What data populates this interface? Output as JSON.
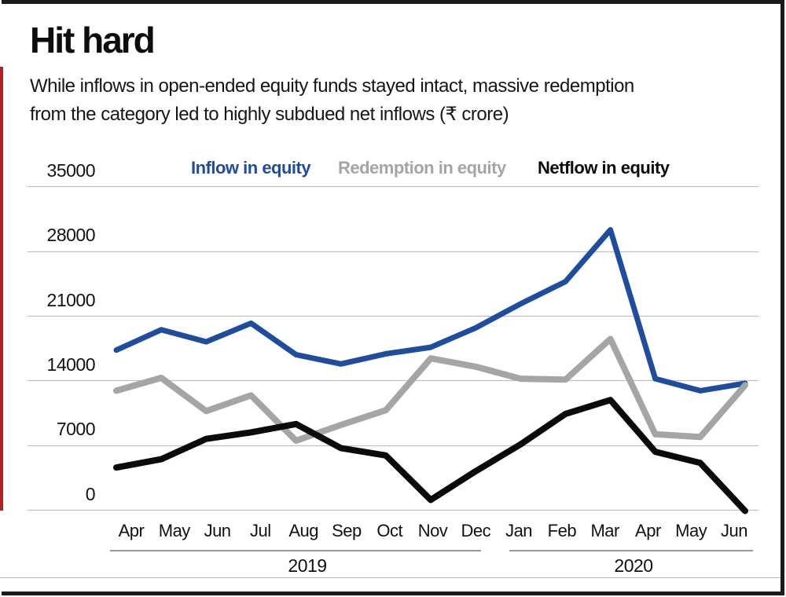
{
  "header": {
    "title": "Hit hard",
    "subtitle_line1": "While inflows in open-ended equity funds stayed intact, massive redemption",
    "subtitle_line2": "from the category led to highly subdued net inflows (₹ crore)"
  },
  "frame": {
    "accent_stripe_color": "#b22222",
    "border_color": "#1a1a1a"
  },
  "chart_data": {
    "type": "line",
    "unit": "₹ crore",
    "title": "Hit hard",
    "legend_position": "top",
    "grid": true,
    "gridline_color": "#bfbfbf",
    "ylim": [
      0,
      35000
    ],
    "y_ticks": [
      35000,
      28000,
      21000,
      14000,
      7000,
      0
    ],
    "categories": [
      "Apr",
      "May",
      "Jun",
      "Jul",
      "Aug",
      "Sep",
      "Oct",
      "Nov",
      "Dec",
      "Jan",
      "Feb",
      "Mar",
      "Apr",
      "May",
      "Jun"
    ],
    "year_groups": [
      {
        "label": "2019"
      },
      {
        "label": "2020"
      }
    ],
    "series": [
      {
        "name": "Inflow in equity",
        "color": "#1e4da0",
        "values": [
          17300,
          19500,
          18200,
          20200,
          16800,
          15800,
          16900,
          17600,
          19700,
          22300,
          24700,
          30300,
          14200,
          12900,
          13700
        ]
      },
      {
        "name": "Redemption in equity",
        "color": "#a5a5a5",
        "values": [
          12900,
          14300,
          10700,
          12400,
          7500,
          9200,
          10800,
          16400,
          15500,
          14200,
          14100,
          18500,
          8200,
          7900,
          13500
        ]
      },
      {
        "name": "Netflow in equity",
        "color": "#0a0a0a",
        "values": [
          4600,
          5500,
          7700,
          8400,
          9300,
          6700,
          5900,
          1100,
          4200,
          7100,
          10400,
          11900,
          6300,
          5100,
          -100
        ]
      }
    ]
  }
}
